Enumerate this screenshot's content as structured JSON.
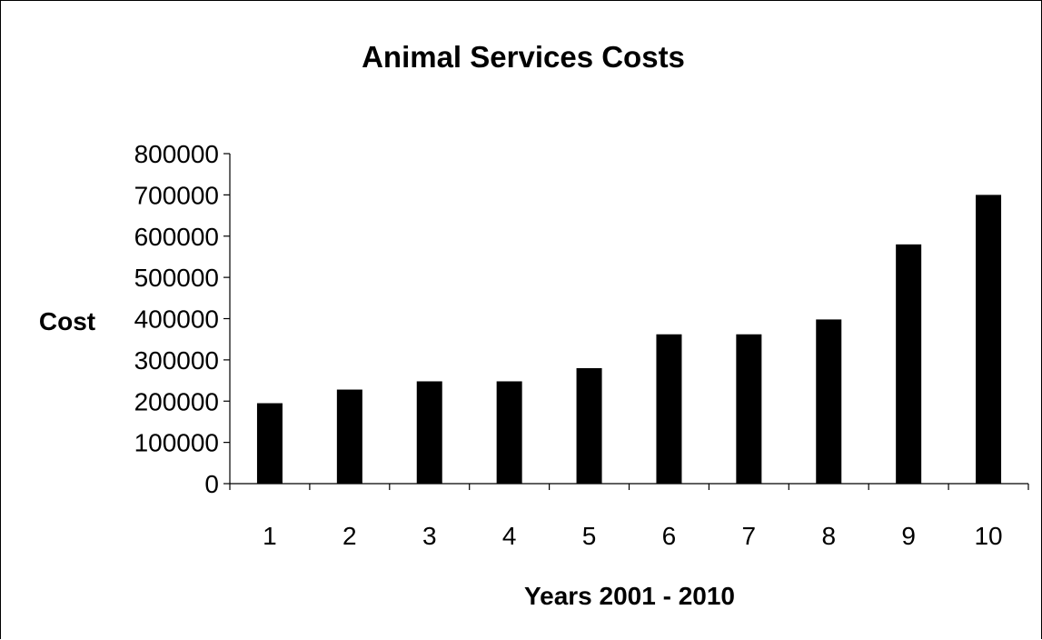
{
  "chart_data": {
    "type": "bar",
    "title": "Animal Services Costs",
    "xlabel": "Years 2001 - 2010",
    "ylabel": "Cost",
    "categories": [
      "1",
      "2",
      "3",
      "4",
      "5",
      "6",
      "7",
      "8",
      "9",
      "10"
    ],
    "values": [
      195000,
      228000,
      248000,
      248000,
      280000,
      362000,
      362000,
      398000,
      580000,
      700000
    ],
    "ylim": [
      0,
      800000
    ],
    "yticks": [
      "0",
      "100000",
      "200000",
      "300000",
      "400000",
      "500000",
      "600000",
      "700000",
      "800000"
    ],
    "bar_color": "#000000",
    "grid": false,
    "legend": "none"
  }
}
